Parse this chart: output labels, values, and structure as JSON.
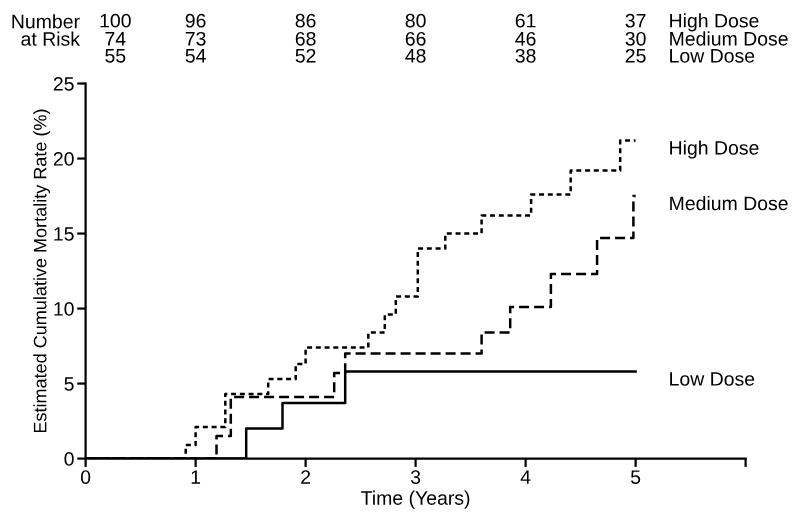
{
  "chart_data": {
    "type": "step",
    "xlabel": "Time (Years)",
    "ylabel": "Estimated Cumulative Mortality Rate (%)",
    "xlim": [
      0,
      6
    ],
    "xticks": [
      0,
      1,
      2,
      3,
      4,
      5,
      {
        "value": 6,
        "label": null
      }
    ],
    "ylim": [
      0,
      25
    ],
    "yticks": [
      0,
      5,
      10,
      15,
      20,
      25
    ],
    "grid": false,
    "legend": false,
    "marker": "none",
    "series": [
      {
        "name": "High Dose",
        "color": "#000000",
        "line_style": "dotted",
        "x": [
          0,
          0.91,
          1.0,
          1.27,
          1.66,
          1.91,
          2.0,
          2.57,
          2.72,
          2.82,
          3.02,
          3.27,
          3.6,
          4.05,
          4.41,
          4.86,
          5.0
        ],
        "values": [
          0,
          0.9,
          2.1,
          4.3,
          5.3,
          6.3,
          7.4,
          8.4,
          9.6,
          10.8,
          14.0,
          15.0,
          16.2,
          17.6,
          19.2,
          21.2,
          21.2
        ]
      },
      {
        "name": "Medium Dose",
        "color": "#000000",
        "line_style": "dashed",
        "x": [
          0,
          1.19,
          1.32,
          2.26,
          2.36,
          3.6,
          3.86,
          4.23,
          4.65,
          4.98,
          5.0
        ],
        "values": [
          0,
          1.5,
          4.1,
          5.7,
          7.0,
          8.4,
          10.1,
          12.3,
          14.7,
          17.5,
          17.5
        ]
      },
      {
        "name": "Low Dose",
        "color": "#000000",
        "line_style": "solid",
        "x": [
          0,
          1.46,
          1.79,
          2.36,
          5.0
        ],
        "values": [
          0,
          2.0,
          3.7,
          5.8,
          5.8
        ]
      }
    ],
    "annotations": [
      "Number at Risk",
      "100 96 86 80 61 37 High Dose",
      "74 73 68 66 46 30 Medium Dose",
      "55 54 52 48 38 25 Low Dose"
    ]
  }
}
